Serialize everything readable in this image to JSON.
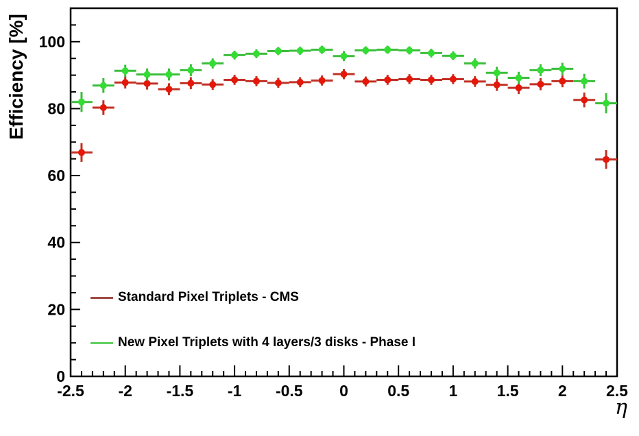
{
  "chart_data": {
    "type": "scatter",
    "title": "",
    "xlabel": "η",
    "ylabel": "Efficiency [%]",
    "xlim": [
      -2.5,
      2.5
    ],
    "ylim": [
      0,
      110
    ],
    "grid": false,
    "legend_position": "inside-bottom-left",
    "x_major_ticks": [
      -2.5,
      -2,
      -1.5,
      -1,
      -0.5,
      0,
      0.5,
      1,
      1.5,
      2,
      2.5
    ],
    "x_tick_labels": [
      "-2.5",
      "-2",
      "-1.5",
      "-1",
      "-0.5",
      "0",
      "0.5",
      "1",
      "1.5",
      "2",
      "2.5"
    ],
    "x_minor_step": 0.1,
    "y_major_ticks": [
      0,
      20,
      40,
      60,
      80,
      100
    ],
    "y_tick_labels": [
      "0",
      "20",
      "40",
      "60",
      "80",
      "100"
    ],
    "y_minor_step": 5,
    "x": [
      -2.4,
      -2.2,
      -2.0,
      -1.8,
      -1.6,
      -1.4,
      -1.2,
      -1.0,
      -0.8,
      -0.6,
      -0.4,
      -0.2,
      0.0,
      0.2,
      0.4,
      0.6,
      0.8,
      1.0,
      1.2,
      1.4,
      1.6,
      1.8,
      2.0,
      2.2,
      2.4
    ],
    "xerr": 0.1,
    "series": [
      {
        "id": "standard-pixel-triplets-cms",
        "name": "Standard Pixel Triplets - CMS",
        "line_color": "#c03024",
        "marker_color": "#e51709",
        "legend_line_color": "#9e4a44",
        "values": [
          66.9,
          80.3,
          87.8,
          87.5,
          85.8,
          87.6,
          87.2,
          88.6,
          88.2,
          87.7,
          87.9,
          88.4,
          90.3,
          88.1,
          88.6,
          88.8,
          88.6,
          88.8,
          88.1,
          87.1,
          86.2,
          87.3,
          88.2,
          82.6,
          64.8
        ],
        "yerr": [
          2.8,
          2.2,
          1.8,
          1.8,
          1.8,
          1.8,
          1.6,
          1.5,
          1.5,
          1.5,
          1.5,
          1.5,
          1.5,
          1.5,
          1.5,
          1.5,
          1.5,
          1.5,
          1.6,
          1.8,
          1.8,
          1.8,
          1.8,
          2.2,
          2.8
        ]
      },
      {
        "id": "new-pixel-triplets-phase1",
        "name": "New Pixel Triplets with 4 layers/3 disks - Phase I",
        "line_color": "#3bbd3b",
        "marker_color": "#33dd33",
        "legend_line_color": "#63d063",
        "values": [
          82.0,
          86.9,
          91.3,
          90.2,
          90.2,
          91.5,
          93.5,
          96.0,
          96.4,
          97.2,
          97.3,
          97.6,
          95.7,
          97.4,
          97.6,
          97.4,
          96.6,
          95.8,
          93.5,
          90.7,
          89.2,
          91.5,
          91.9,
          88.2,
          81.6
        ],
        "yerr": [
          3.0,
          2.2,
          1.8,
          1.8,
          1.8,
          1.8,
          1.5,
          1.3,
          1.3,
          1.2,
          1.2,
          1.2,
          1.5,
          1.2,
          1.2,
          1.2,
          1.3,
          1.3,
          1.5,
          1.8,
          1.8,
          1.8,
          1.8,
          2.2,
          3.0
        ]
      }
    ]
  }
}
